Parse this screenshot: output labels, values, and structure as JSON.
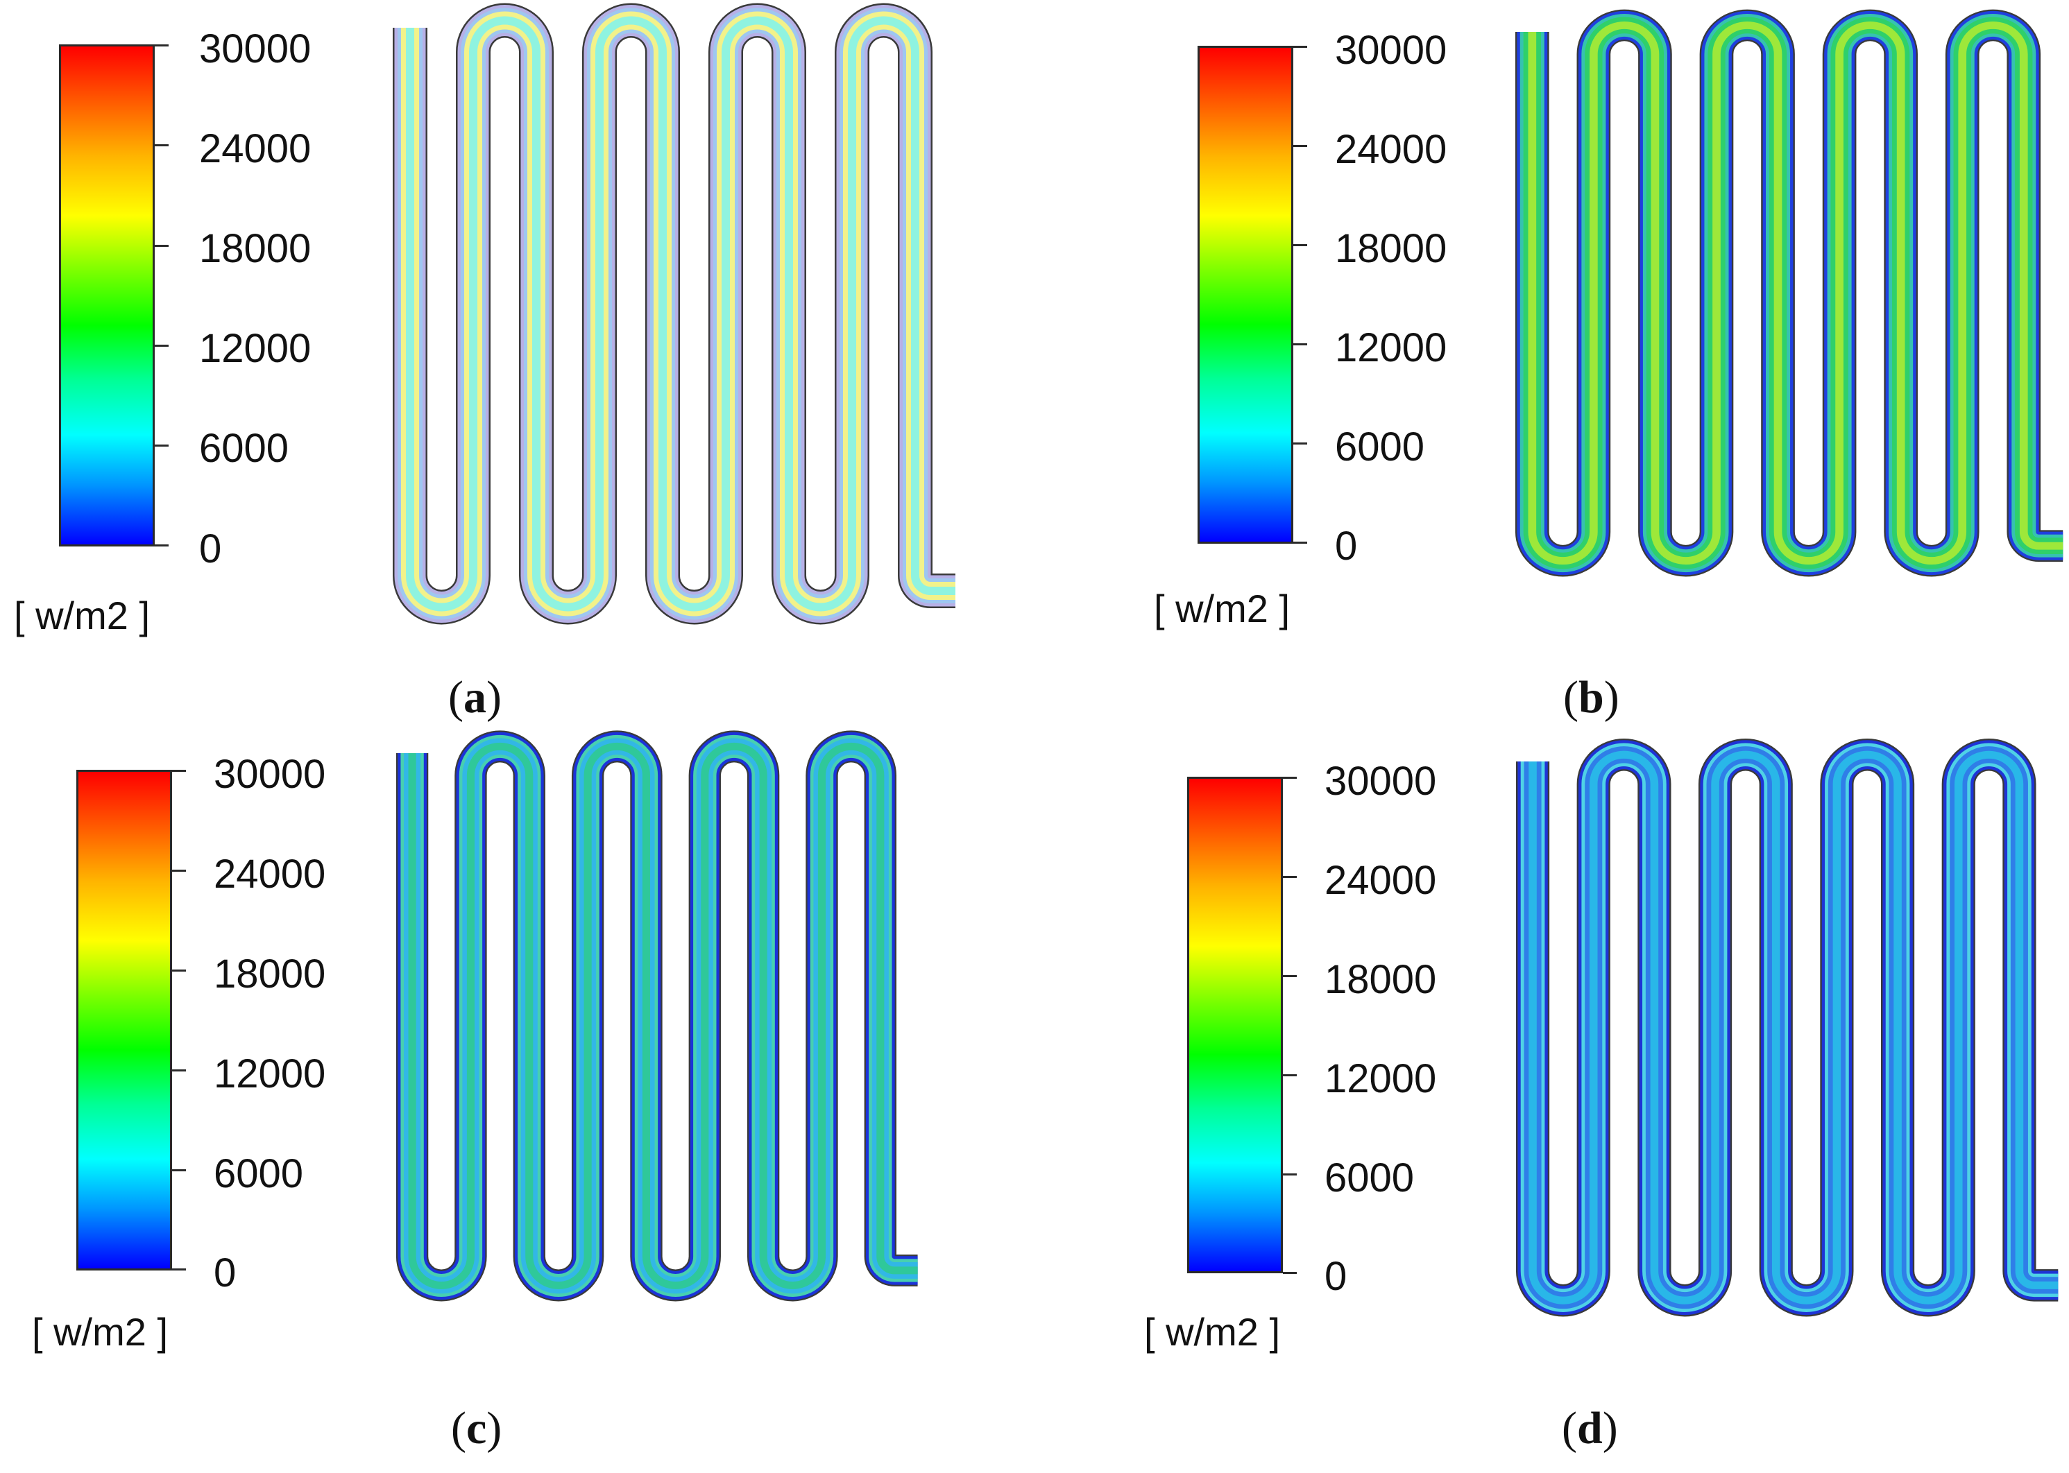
{
  "colorbar": {
    "ticks": [
      "30000",
      "24000",
      "18000",
      "12000",
      "6000",
      "0"
    ],
    "unit": "[ w/m2 ]",
    "colors": [
      "#0000ff",
      "#00ffff",
      "#00ff00",
      "#ffff00",
      "#ff0000"
    ]
  },
  "panels": [
    {
      "id": "a",
      "letter": "a",
      "inner_color": "#8ff3e0",
      "band_color": "#f2f28a",
      "outer_color": "#b7b0e6",
      "edge_color": "#9ec7f0"
    },
    {
      "id": "b",
      "letter": "b",
      "inner_color": "#9ee83a",
      "band_color": "#2fd06a",
      "outer_color": "#1f3fe0",
      "edge_color": "#36c2b0"
    },
    {
      "id": "c",
      "letter": "c",
      "inner_color": "#2fc89a",
      "band_color": "#32b7e6",
      "outer_color": "#1b33d9",
      "edge_color": "#47d0b0"
    },
    {
      "id": "d",
      "letter": "d",
      "inner_color": "#29b7e8",
      "band_color": "#2f7ee8",
      "outer_color": "#1e34d6",
      "edge_color": "#4fd2e6"
    }
  ]
}
